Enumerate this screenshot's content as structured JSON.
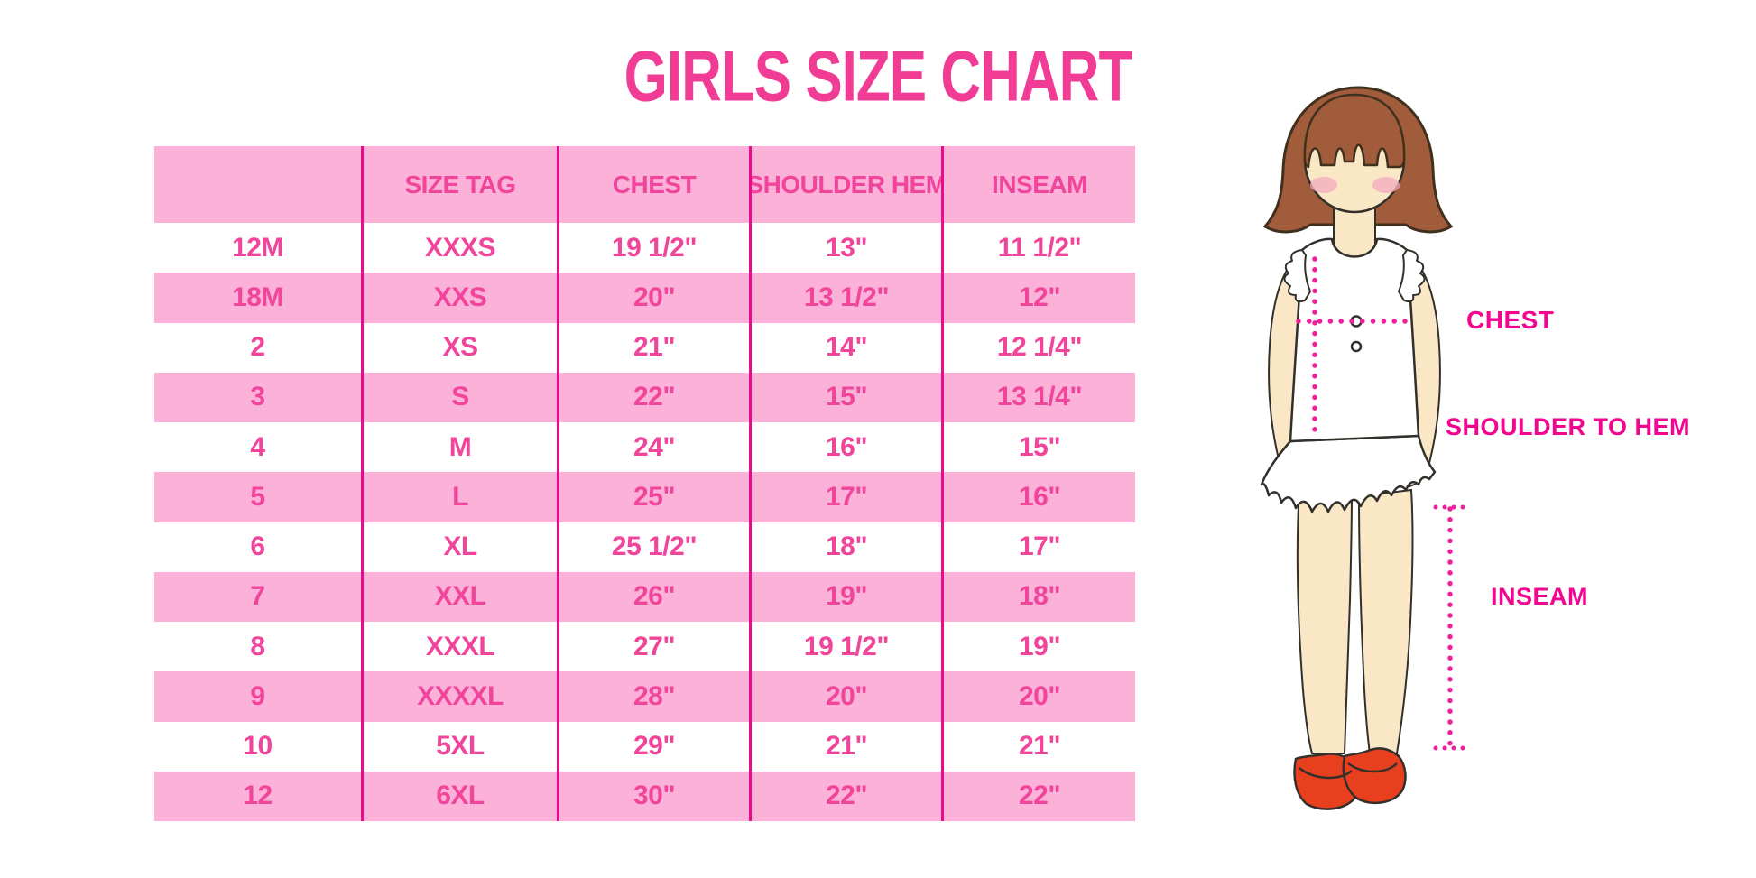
{
  "title": "GIRLS SIZE CHART",
  "chart_data": {
    "type": "table",
    "title": "GIRLS SIZE CHART",
    "columns": [
      "",
      "SIZE TAG",
      "CHEST",
      "SHOULDER HEM",
      "INSEAM"
    ],
    "rows": [
      [
        "12M",
        "XXXS",
        "19 1/2\"",
        "13\"",
        "11 1/2\""
      ],
      [
        "18M",
        "XXS",
        "20\"",
        "13 1/2\"",
        "12\""
      ],
      [
        "2",
        "XS",
        "21\"",
        "14\"",
        "12 1/4\""
      ],
      [
        "3",
        "S",
        "22\"",
        "15\"",
        "13 1/4\""
      ],
      [
        "4",
        "M",
        "24\"",
        "16\"",
        "15\""
      ],
      [
        "5",
        "L",
        "25\"",
        "17\"",
        "16\""
      ],
      [
        "6",
        "XL",
        "25 1/2\"",
        "18\"",
        "17\""
      ],
      [
        "7",
        "XXL",
        "26\"",
        "19\"",
        "18\""
      ],
      [
        "8",
        "XXXL",
        "27\"",
        "19 1/2\"",
        "19\""
      ],
      [
        "9",
        "XXXXL",
        "28\"",
        "20\"",
        "20\""
      ],
      [
        "10",
        "5XL",
        "29\"",
        "21\"",
        "21\""
      ],
      [
        "12",
        "6XL",
        "30\"",
        "22\"",
        "22\""
      ]
    ]
  },
  "diagram": {
    "labels": {
      "chest": "CHEST",
      "shoulder_to_hem": "SHOULDER TO HEM",
      "inseam": "INSEAM"
    }
  },
  "theme": {
    "title_pink": "#F13C96",
    "pink_band": "#FBB1D8",
    "text_pink": "#F0459B",
    "magenta_line": "#EA0B8C",
    "label_magenta": "#F2058F",
    "dotted_pink": "#F01F9C",
    "hair_brown": "#A05C3B",
    "hair_line": "#42301F",
    "skin": "#FAE7C6",
    "blush": "#F4AEBE",
    "shoe_red": "#E8401F",
    "outline": "#332F2B"
  }
}
